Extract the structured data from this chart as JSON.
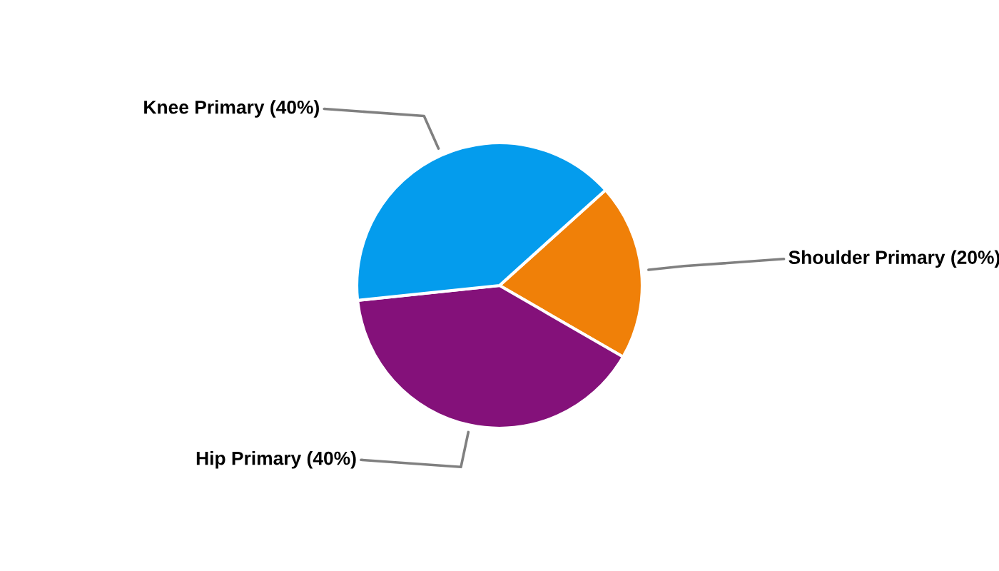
{
  "chart_data": {
    "type": "pie",
    "categories": [
      "Shoulder Primary (20%)",
      "Hip Primary (40%)",
      "Knee Primary (40%)"
    ],
    "values": [
      20,
      40,
      40
    ],
    "colors": [
      "#f08008",
      "#84117a",
      "#049ced"
    ],
    "legend": false
  }
}
